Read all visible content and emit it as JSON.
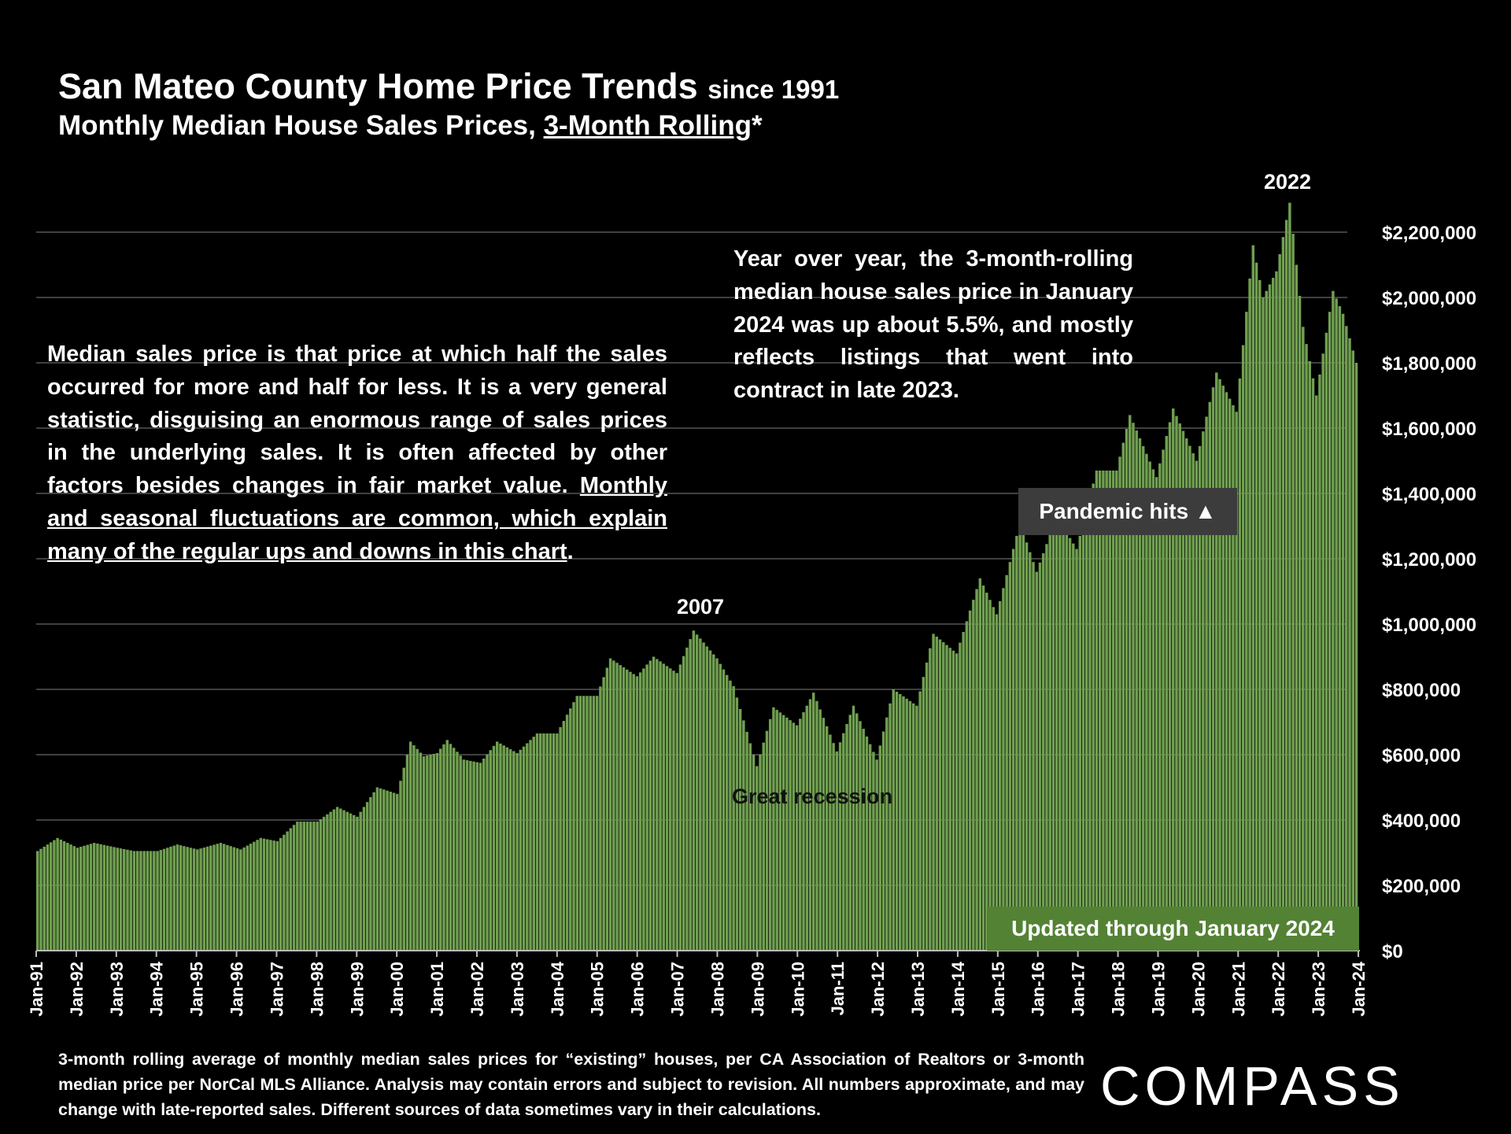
{
  "header": {
    "title_main": "San Mateo County Home Price Trends",
    "title_since": "since 1991",
    "subtitle_pre": "Monthly Median House Sales Prices, ",
    "subtitle_link": "3-Month Rolling",
    "subtitle_post": "*"
  },
  "notes": {
    "left_plain": "Median sales price is that price at which half the sales occurred for more and half for less. It is a very general statistic, disguising an enormous range of sales prices in the underlying sales. It is often affected by other factors besides changes in fair market value. ",
    "left_underlined": "Monthly and seasonal fluctuations are common, which explain many of the regular ups and downs in this chart",
    "left_end": ".",
    "right": "Year over year, the 3-month-rolling median house sales price in January 2024 was up about 5.5%, and mostly reflects listings that went into contract in late 2023."
  },
  "annotations": {
    "peak_2007": "2007",
    "peak_2022": "2022",
    "recession": "Great recession",
    "pandemic": "Pandemic hits ▲",
    "updated": "Updated through January 2024"
  },
  "footnote": "3-month rolling average of monthly median sales prices for “existing” houses, per CA Association of Realtors or 3-month median price per NorCal MLS Alliance. Analysis may contain errors and subject to revision. All numbers approximate, and may change with late-reported sales. Different sources of data sometimes vary in their calculations.",
  "brand": {
    "logo": "COMPASS"
  },
  "colors": {
    "background": "#000000",
    "bar": "#70a050",
    "bar_edge": "#8fc070",
    "grid": "#555555",
    "updated_bg": "#548235",
    "pandemic_bg": "#3c3c3c"
  },
  "chart_data": {
    "type": "bar",
    "title": "San Mateo County Home Price Trends since 1991",
    "subtitle": "Monthly Median House Sales Prices, 3-Month Rolling*",
    "xlabel": "",
    "ylabel": "",
    "ylim": [
      0,
      2200000
    ],
    "grid": true,
    "y_ticks": [
      0,
      200000,
      400000,
      600000,
      800000,
      1000000,
      1200000,
      1400000,
      1600000,
      1800000,
      2000000,
      2200000
    ],
    "y_tick_labels": [
      "$0",
      "$200,000",
      "$400,000",
      "$600,000",
      "$800,000",
      "$1,000,000",
      "$1,200,000",
      "$1,400,000",
      "$1,600,000",
      "$1,800,000",
      "$2,000,000",
      "$2,200,000"
    ],
    "x_tick_labels": [
      "Jan-91",
      "Jan-92",
      "Jan-93",
      "Jan-94",
      "Jan-95",
      "Jan-96",
      "Jan-97",
      "Jan-98",
      "Jan-99",
      "Jan-00",
      "Jan-01",
      "Jan-02",
      "Jan-03",
      "Jan-04",
      "Jan-05",
      "Jan-06",
      "Jan-07",
      "Jan-08",
      "Jan-09",
      "Jan-10",
      "Jan-11",
      "Jan-12",
      "Jan-13",
      "Jan-14",
      "Jan-15",
      "Jan-16",
      "Jan-17",
      "Jan-18",
      "Jan-19",
      "Jan-20",
      "Jan-21",
      "Jan-22",
      "Jan-23",
      "Jan-24"
    ],
    "series_frequency": "monthly, Jan-1991 to Jan-2024, values interpolated between anchor points",
    "anchors": [
      {
        "date": "1991-01",
        "value": 305000
      },
      {
        "date": "1991-07",
        "value": 345000
      },
      {
        "date": "1992-01",
        "value": 315000
      },
      {
        "date": "1992-06",
        "value": 330000
      },
      {
        "date": "1993-01",
        "value": 315000
      },
      {
        "date": "1993-06",
        "value": 305000
      },
      {
        "date": "1994-01",
        "value": 305000
      },
      {
        "date": "1994-07",
        "value": 325000
      },
      {
        "date": "1995-01",
        "value": 310000
      },
      {
        "date": "1995-08",
        "value": 330000
      },
      {
        "date": "1996-02",
        "value": 310000
      },
      {
        "date": "1996-08",
        "value": 345000
      },
      {
        "date": "1997-01",
        "value": 335000
      },
      {
        "date": "1997-07",
        "value": 395000
      },
      {
        "date": "1998-01",
        "value": 395000
      },
      {
        "date": "1998-07",
        "value": 440000
      },
      {
        "date": "1999-01",
        "value": 410000
      },
      {
        "date": "1999-07",
        "value": 500000
      },
      {
        "date": "2000-01",
        "value": 480000
      },
      {
        "date": "2000-05",
        "value": 640000
      },
      {
        "date": "2000-09",
        "value": 595000
      },
      {
        "date": "2001-01",
        "value": 605000
      },
      {
        "date": "2001-04",
        "value": 645000
      },
      {
        "date": "2001-09",
        "value": 585000
      },
      {
        "date": "2002-02",
        "value": 575000
      },
      {
        "date": "2002-07",
        "value": 640000
      },
      {
        "date": "2003-01",
        "value": 605000
      },
      {
        "date": "2003-07",
        "value": 665000
      },
      {
        "date": "2004-01",
        "value": 665000
      },
      {
        "date": "2004-07",
        "value": 780000
      },
      {
        "date": "2005-01",
        "value": 780000
      },
      {
        "date": "2005-05",
        "value": 895000
      },
      {
        "date": "2006-01",
        "value": 840000
      },
      {
        "date": "2006-06",
        "value": 900000
      },
      {
        "date": "2007-01",
        "value": 850000
      },
      {
        "date": "2007-06",
        "value": 980000
      },
      {
        "date": "2008-01",
        "value": 895000
      },
      {
        "date": "2008-06",
        "value": 810000
      },
      {
        "date": "2009-01",
        "value": 565000
      },
      {
        "date": "2009-06",
        "value": 745000
      },
      {
        "date": "2010-01",
        "value": 690000
      },
      {
        "date": "2010-06",
        "value": 790000
      },
      {
        "date": "2011-01",
        "value": 610000
      },
      {
        "date": "2011-06",
        "value": 750000
      },
      {
        "date": "2012-01",
        "value": 585000
      },
      {
        "date": "2012-06",
        "value": 800000
      },
      {
        "date": "2013-01",
        "value": 750000
      },
      {
        "date": "2013-06",
        "value": 970000
      },
      {
        "date": "2014-01",
        "value": 910000
      },
      {
        "date": "2014-08",
        "value": 1140000
      },
      {
        "date": "2015-01",
        "value": 1030000
      },
      {
        "date": "2015-08",
        "value": 1310000
      },
      {
        "date": "2016-01",
        "value": 1160000
      },
      {
        "date": "2016-07",
        "value": 1330000
      },
      {
        "date": "2017-01",
        "value": 1230000
      },
      {
        "date": "2017-07",
        "value": 1470000
      },
      {
        "date": "2018-01",
        "value": 1470000
      },
      {
        "date": "2018-05",
        "value": 1640000
      },
      {
        "date": "2019-01",
        "value": 1450000
      },
      {
        "date": "2019-06",
        "value": 1660000
      },
      {
        "date": "2020-01",
        "value": 1500000
      },
      {
        "date": "2020-07",
        "value": 1770000
      },
      {
        "date": "2021-01",
        "value": 1650000
      },
      {
        "date": "2021-06",
        "value": 2160000
      },
      {
        "date": "2021-09",
        "value": 2000000
      },
      {
        "date": "2022-01",
        "value": 2080000
      },
      {
        "date": "2022-05",
        "value": 2290000
      },
      {
        "date": "2022-09",
        "value": 1910000
      },
      {
        "date": "2023-01",
        "value": 1700000
      },
      {
        "date": "2023-06",
        "value": 2020000
      },
      {
        "date": "2023-09",
        "value": 1950000
      },
      {
        "date": "2024-01",
        "value": 1800000
      }
    ]
  }
}
